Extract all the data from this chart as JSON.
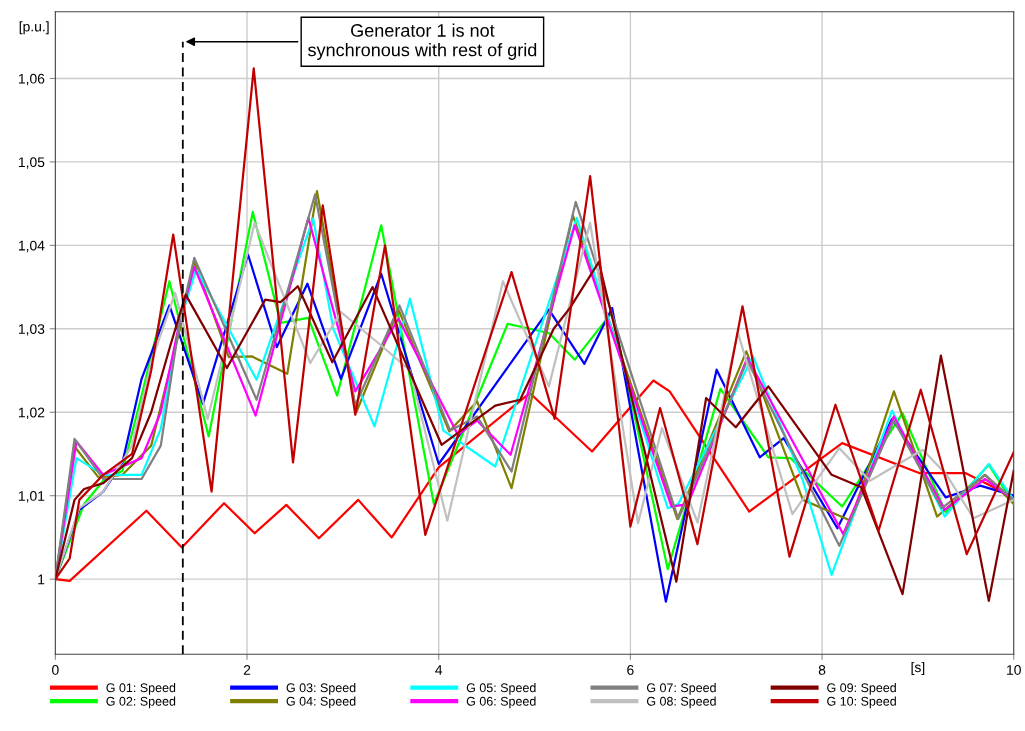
{
  "chart_data": {
    "type": "line",
    "xlabel": "[s]",
    "ylabel": "[p.u.]",
    "xlim": [
      0,
      10
    ],
    "xticks": [
      0,
      2,
      4,
      6,
      8,
      10
    ],
    "ylim": [
      0.991,
      1.068
    ],
    "yticks": [
      {
        "value": 1,
        "label": "1"
      },
      {
        "value": 1.01,
        "label": "1,01"
      },
      {
        "value": 1.02,
        "label": "1,02"
      },
      {
        "value": 1.03,
        "label": "1,03"
      },
      {
        "value": 1.04,
        "label": "1,04"
      },
      {
        "value": 1.05,
        "label": "1,05"
      },
      {
        "value": 1.06,
        "label": "1,06"
      }
    ],
    "grid": true,
    "legend": "bottom",
    "line_style": "solid",
    "marker": "none",
    "annotations": [
      {
        "text": "Generator 1 is not\nsynchronous with rest of grid",
        "x": 1.33,
        "y": 1.0644
      }
    ],
    "ref_lines": [
      {
        "axis": "x",
        "value": 1.33,
        "label": null,
        "color": "#000000",
        "line_style": "dashed"
      }
    ],
    "series": [
      {
        "name": "G 01: Speed",
        "color": "#ff0000",
        "x": [
          0,
          0.15,
          0.95,
          1.32,
          1.76,
          2.08,
          2.41,
          2.75,
          3.16,
          3.51,
          4.0,
          4.95,
          5.6,
          6.24,
          6.41,
          7.24,
          8.21,
          9.02,
          9.5,
          10
        ],
        "values": [
          1.0,
          0.9998,
          1.0082,
          1.0038,
          1.0091,
          1.0055,
          1.0089,
          1.0049,
          1.0095,
          1.005,
          1.0134,
          1.0223,
          1.0153,
          1.0238,
          1.0225,
          1.0081,
          1.0163,
          1.0127,
          1.0127,
          1.0098
        ]
      },
      {
        "name": "G 02: Speed",
        "color": "#00ff00",
        "x": [
          0,
          0.3,
          0.5,
          0.7,
          0.9,
          1.19,
          1.6,
          2.06,
          2.35,
          2.64,
          2.94,
          3.4,
          3.95,
          4.72,
          5.15,
          5.42,
          5.81,
          6.39,
          6.94,
          7.44,
          7.67,
          8.21,
          8.84,
          9.29,
          9.74,
          10
        ],
        "values": [
          1.0,
          1.009,
          1.0118,
          1.013,
          1.022,
          1.0357,
          1.0171,
          1.044,
          1.0307,
          1.0313,
          1.022,
          1.0424,
          1.009,
          1.0306,
          1.0295,
          1.0263,
          1.032,
          1.0012,
          1.0228,
          1.0146,
          1.0145,
          1.0087,
          1.0199,
          1.008,
          1.0137,
          1.009
        ]
      },
      {
        "name": "G 03: Speed",
        "color": "#0000ff",
        "x": [
          0,
          0.25,
          0.5,
          0.7,
          0.9,
          1.19,
          1.54,
          2.01,
          2.31,
          2.63,
          2.98,
          3.4,
          4.0,
          5.15,
          5.52,
          5.81,
          6.37,
          6.9,
          7.35,
          7.6,
          8.16,
          8.73,
          9.29,
          9.65,
          10
        ],
        "values": [
          1.0,
          1.0083,
          1.0105,
          1.014,
          1.024,
          1.0328,
          1.021,
          1.0389,
          1.0278,
          1.0354,
          1.024,
          1.0366,
          1.0138,
          1.0323,
          1.0258,
          1.0325,
          0.9973,
          1.0251,
          1.0146,
          1.0169,
          1.0061,
          1.0192,
          1.0098,
          1.0112,
          1.01
        ]
      },
      {
        "name": "G 04: Speed",
        "color": "#808000",
        "x": [
          0,
          0.2,
          0.45,
          0.7,
          1.0,
          1.3,
          1.45,
          1.81,
          2.05,
          2.42,
          2.73,
          3.14,
          3.58,
          4.11,
          4.4,
          4.76,
          5.4,
          6.49,
          7.21,
          7.8,
          8.3,
          8.75,
          9.2,
          9.7,
          10
        ],
        "values": [
          1.0,
          1.0159,
          1.0122,
          1.0125,
          1.016,
          1.03,
          1.0381,
          1.0266,
          1.0267,
          1.0246,
          1.0465,
          1.02,
          1.0323,
          1.0177,
          1.0213,
          1.0109,
          1.0436,
          1.0072,
          1.0273,
          1.0095,
          1.007,
          1.0225,
          1.0075,
          1.0125,
          1.009
        ]
      },
      {
        "name": "G 05: Speed",
        "color": "#00ffff",
        "x": [
          0,
          0.22,
          0.5,
          0.9,
          1.1,
          1.3,
          1.47,
          2.1,
          2.69,
          2.9,
          3.33,
          3.7,
          4.05,
          4.59,
          5.44,
          6.39,
          6.5,
          7.28,
          7.8,
          8.1,
          8.73,
          9.28,
          9.74,
          10
        ],
        "values": [
          1.0,
          1.0145,
          1.0125,
          1.0125,
          1.018,
          1.031,
          1.0371,
          1.0239,
          1.0432,
          1.03,
          1.0183,
          1.0336,
          1.0178,
          1.0135,
          1.0433,
          1.0085,
          1.009,
          1.0267,
          1.0118,
          1.0005,
          1.0202,
          1.0075,
          1.0138,
          1.0095
        ]
      },
      {
        "name": "G 06: Speed",
        "color": "#ff00ff",
        "x": [
          0,
          0.22,
          0.5,
          0.9,
          1.1,
          1.3,
          1.45,
          2.09,
          2.64,
          3.13,
          3.58,
          4.2,
          4.4,
          4.75,
          5.42,
          6.43,
          6.6,
          7.22,
          8.22,
          8.75,
          9.28,
          9.7,
          10
        ],
        "values": [
          1.0,
          1.0165,
          1.0125,
          1.0145,
          1.02,
          1.031,
          1.0374,
          1.0196,
          1.0433,
          1.0225,
          1.0312,
          1.0173,
          1.019,
          1.0149,
          1.0424,
          1.0087,
          1.009,
          1.0265,
          1.0054,
          1.0195,
          1.0083,
          1.012,
          1.0095
        ]
      },
      {
        "name": "G 07: Speed",
        "color": "#808080",
        "x": [
          0,
          0.2,
          0.5,
          0.9,
          1.1,
          1.3,
          1.45,
          2.1,
          2.71,
          3.13,
          3.59,
          4.12,
          4.4,
          4.76,
          5.43,
          6.5,
          7.22,
          8.18,
          8.75,
          9.25,
          9.7,
          10
        ],
        "values": [
          1.0,
          1.0168,
          1.012,
          1.012,
          1.016,
          1.031,
          1.0385,
          1.0215,
          1.0461,
          1.0208,
          1.0328,
          1.0178,
          1.0195,
          1.0129,
          1.0452,
          1.0072,
          1.0262,
          1.004,
          1.019,
          1.0085,
          1.0125,
          1.0095
        ]
      },
      {
        "name": "G 08: Speed",
        "color": "#c0c0c0",
        "x": [
          0,
          0.25,
          0.5,
          0.8,
          1.0,
          1.25,
          1.59,
          2.08,
          2.66,
          2.98,
          3.4,
          3.7,
          4.09,
          4.67,
          5.15,
          5.58,
          6.08,
          6.33,
          6.7,
          7.12,
          7.69,
          8.18,
          8.5,
          9.05,
          9.3,
          9.58,
          10
        ],
        "values": [
          1.0,
          1.0085,
          1.0105,
          1.016,
          1.026,
          1.0343,
          1.0192,
          1.0427,
          1.0259,
          1.032,
          1.028,
          1.025,
          1.007,
          1.0357,
          1.0231,
          1.0427,
          1.0067,
          1.0181,
          1.0068,
          1.0296,
          1.0078,
          1.0157,
          1.0118,
          1.0155,
          1.0125,
          1.0073,
          1.0095
        ]
      },
      {
        "name": "G 09: Speed",
        "color": "#800000",
        "x": [
          0,
          0.2,
          0.3,
          0.5,
          0.8,
          1.0,
          1.2,
          1.36,
          1.79,
          2.19,
          2.35,
          2.53,
          2.89,
          3.31,
          4.03,
          4.59,
          4.85,
          5.2,
          5.37,
          5.67,
          6.48,
          6.79,
          7.1,
          7.44,
          8.1,
          8.41,
          8.84,
          9.24,
          9.74,
          10
        ],
        "values": [
          1.0,
          1.0095,
          1.0108,
          1.0115,
          1.0145,
          1.02,
          1.028,
          1.0341,
          1.0253,
          1.0335,
          1.0332,
          1.0351,
          1.026,
          1.035,
          1.0161,
          1.0208,
          1.0215,
          1.03,
          1.0325,
          1.038,
          0.9997,
          1.0217,
          1.0182,
          1.0231,
          1.0125,
          1.011,
          0.9982,
          1.0268,
          0.9974,
          1.013
        ]
      },
      {
        "name": "G 10: Speed",
        "color": "#c00000",
        "x": [
          0,
          0.15,
          0.25,
          0.5,
          0.8,
          1.0,
          1.23,
          1.63,
          2.07,
          2.48,
          2.79,
          3.13,
          3.44,
          3.86,
          4.76,
          5.21,
          5.58,
          6.0,
          6.31,
          6.7,
          7.17,
          7.66,
          8.14,
          8.59,
          9.03,
          9.51,
          10
        ],
        "values": [
          1.0,
          1.0025,
          1.0095,
          1.0125,
          1.015,
          1.025,
          1.0413,
          1.0105,
          1.0612,
          1.014,
          1.0448,
          1.0197,
          1.04,
          1.0053,
          1.0368,
          1.0192,
          1.0483,
          1.0063,
          1.0205,
          1.0042,
          1.0327,
          1.0027,
          1.0209,
          1.0058,
          1.0227,
          1.003,
          1.0152
        ]
      }
    ]
  }
}
